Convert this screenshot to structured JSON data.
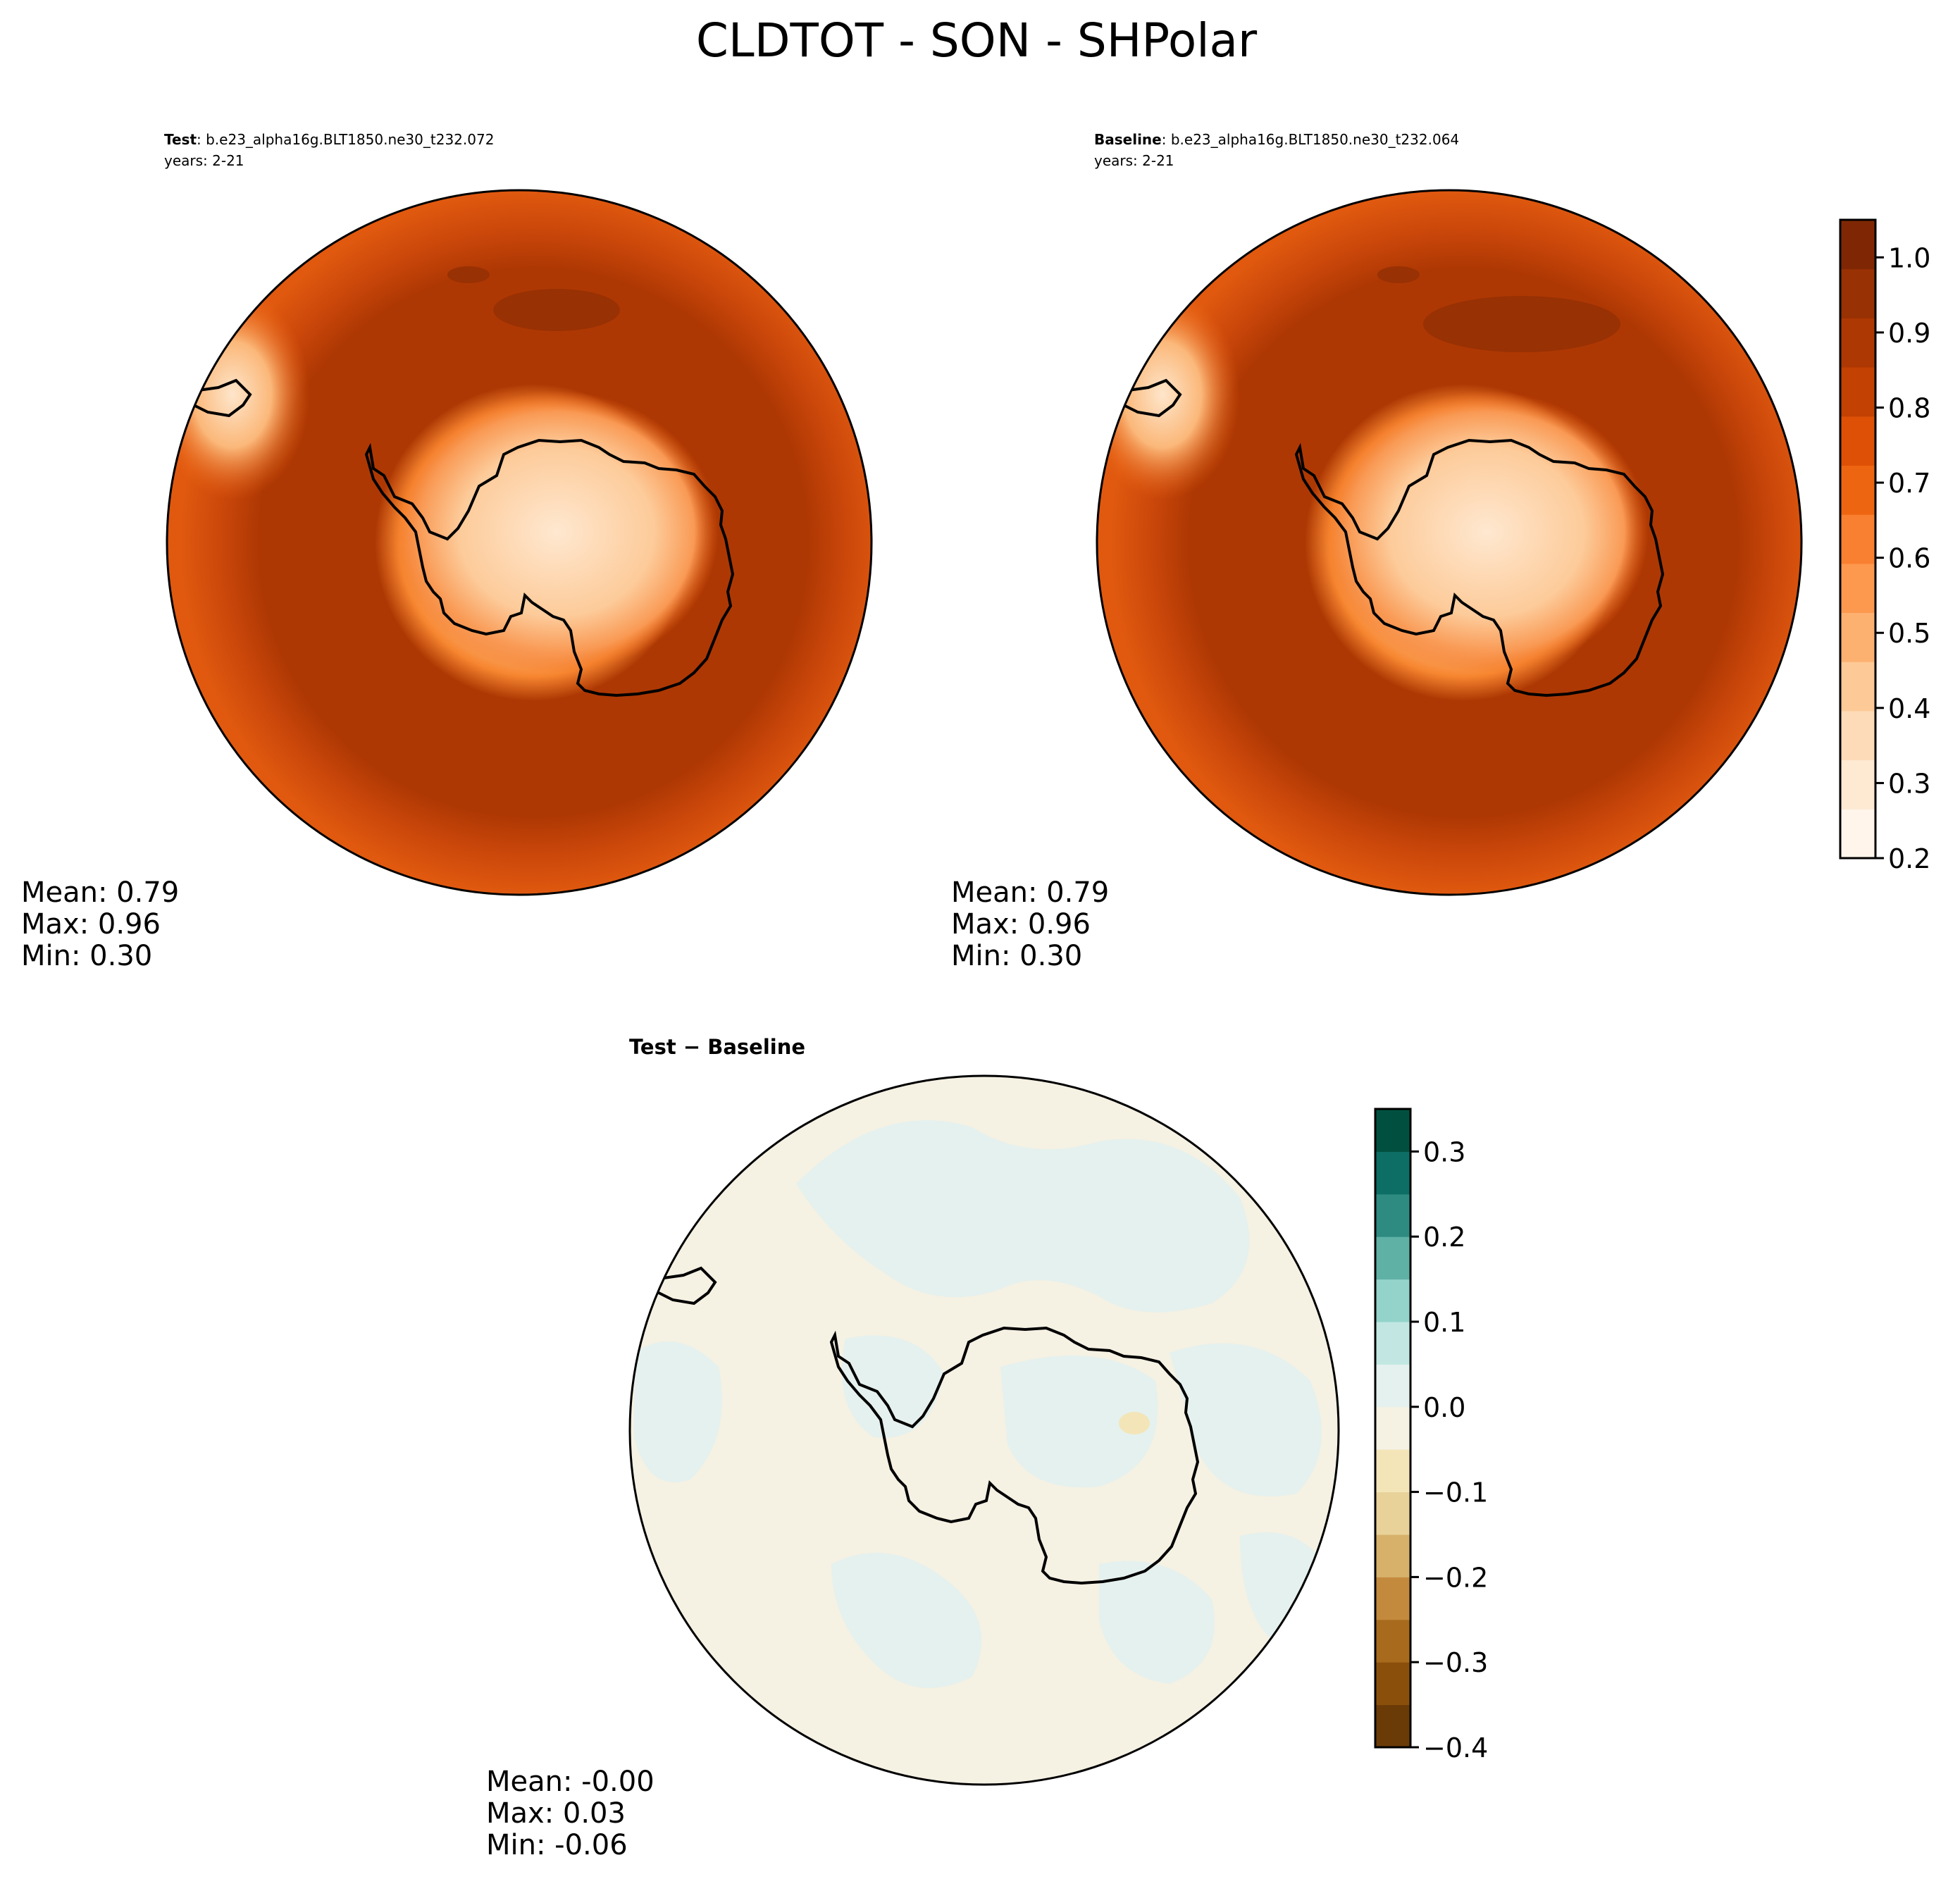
{
  "figure": {
    "title": "CLDTOT - SON - SHPolar"
  },
  "panels": [
    {
      "id": "test",
      "label_bold": "Test",
      "label_rest": ": b.e23_alpha16g.BLT1850.ne30_t232.072",
      "subtitle": "years: 2-21",
      "stats": {
        "mean": "Mean:  0.79",
        "max": "Max:  0.96",
        "min": "Min:  0.30"
      }
    },
    {
      "id": "baseline",
      "label_bold": "Baseline",
      "label_rest": ": b.e23_alpha16g.BLT1850.ne30_t232.064",
      "subtitle": "years: 2-21",
      "stats": {
        "mean": "Mean:  0.79",
        "max": "Max:  0.96",
        "min": "Min:  0.30"
      }
    },
    {
      "id": "diff",
      "label_bold": "Test − Baseline",
      "label_rest": "",
      "subtitle": "",
      "stats": {
        "mean": "Mean: -0.00",
        "max": "Max:  0.03",
        "min": "Min: -0.06"
      }
    }
  ],
  "chart_data": [
    {
      "type": "heatmap",
      "name": "Test",
      "variable": "CLDTOT",
      "season": "SON",
      "region": "SHPolar",
      "projection": "south polar stereographic",
      "stats": {
        "mean": 0.79,
        "max": 0.96,
        "min": 0.3
      },
      "colormap": "Oranges",
      "colorbar_ref": 0
    },
    {
      "type": "heatmap",
      "name": "Baseline",
      "variable": "CLDTOT",
      "season": "SON",
      "region": "SHPolar",
      "projection": "south polar stereographic",
      "stats": {
        "mean": 0.79,
        "max": 0.96,
        "min": 0.3
      },
      "colormap": "Oranges",
      "colorbar_ref": 0
    },
    {
      "type": "heatmap",
      "name": "Test − Baseline",
      "variable": "CLDTOT",
      "season": "SON",
      "region": "SHPolar",
      "projection": "south polar stereographic",
      "stats": {
        "mean": -0.0,
        "max": 0.03,
        "min": -0.06
      },
      "colormap": "BrBG",
      "colorbar_ref": 1
    }
  ],
  "colorbars": [
    {
      "range": [
        0.2,
        1.05
      ],
      "tick_values": [
        0.2,
        0.3,
        0.4,
        0.5,
        0.6,
        0.7,
        0.8,
        0.9,
        1.0
      ],
      "tick_labels": [
        "0.2",
        "0.3",
        "0.4",
        "0.5",
        "0.6",
        "0.7",
        "0.8",
        "0.9",
        "1.0"
      ],
      "colors": [
        "#fff5eb",
        "#fee9d3",
        "#fddbb8",
        "#fdc997",
        "#fdb171",
        "#fd984f",
        "#f98030",
        "#ee6511",
        "#de5005",
        "#c34102",
        "#ae3803",
        "#983104",
        "#7f2704"
      ]
    },
    {
      "range": [
        -0.4,
        0.35
      ],
      "tick_values": [
        -0.4,
        -0.3,
        -0.2,
        -0.1,
        0.0,
        0.1,
        0.2,
        0.3
      ],
      "tick_labels": [
        "−0.4",
        "−0.3",
        "−0.2",
        "−0.1",
        "0.0",
        "0.1",
        "0.2",
        "0.3"
      ],
      "colors": [
        "#6b3b07",
        "#8a500b",
        "#a86a1c",
        "#c38a3e",
        "#d7b16a",
        "#e8d29a",
        "#f3e5b8",
        "#f5f1e3",
        "#e5f1ee",
        "#c2e7e2",
        "#93d3c9",
        "#5fb1a5",
        "#2e8b82",
        "#0d6e66",
        "#01503f"
      ]
    }
  ]
}
